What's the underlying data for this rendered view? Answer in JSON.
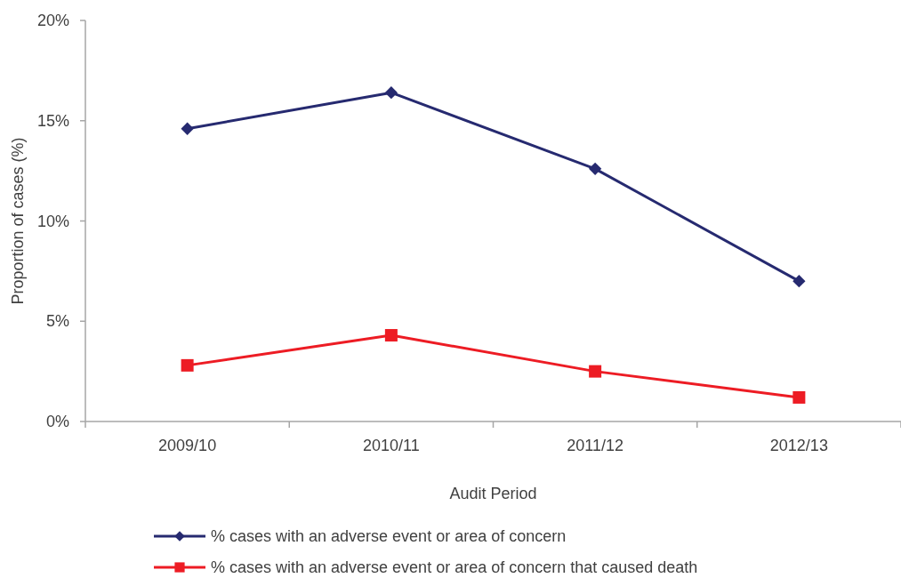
{
  "chart_data": {
    "type": "line",
    "xlabel": "Audit Period",
    "ylabel": "Proportion of cases (%)",
    "categories": [
      "2009/10",
      "2010/11",
      "2011/12",
      "2012/13"
    ],
    "series": [
      {
        "name": "% cases with an adverse event or area of concern",
        "color": "#262a70",
        "marker": "diamond",
        "values": [
          14.6,
          16.4,
          12.6,
          7.0
        ]
      },
      {
        "name": "% cases with an adverse event or area of concern that caused death",
        "color": "#ed1c24",
        "marker": "square",
        "values": [
          2.8,
          4.3,
          2.5,
          1.2
        ]
      }
    ],
    "ylim": [
      0,
      20
    ],
    "yticks": [
      {
        "value": 0,
        "label": "0%"
      },
      {
        "value": 5,
        "label": "5%"
      },
      {
        "value": 10,
        "label": "10%"
      },
      {
        "value": 15,
        "label": "15%"
      },
      {
        "value": 20,
        "label": "20%"
      }
    ],
    "grid": false,
    "legend": "bottom",
    "line_style": "solid"
  }
}
